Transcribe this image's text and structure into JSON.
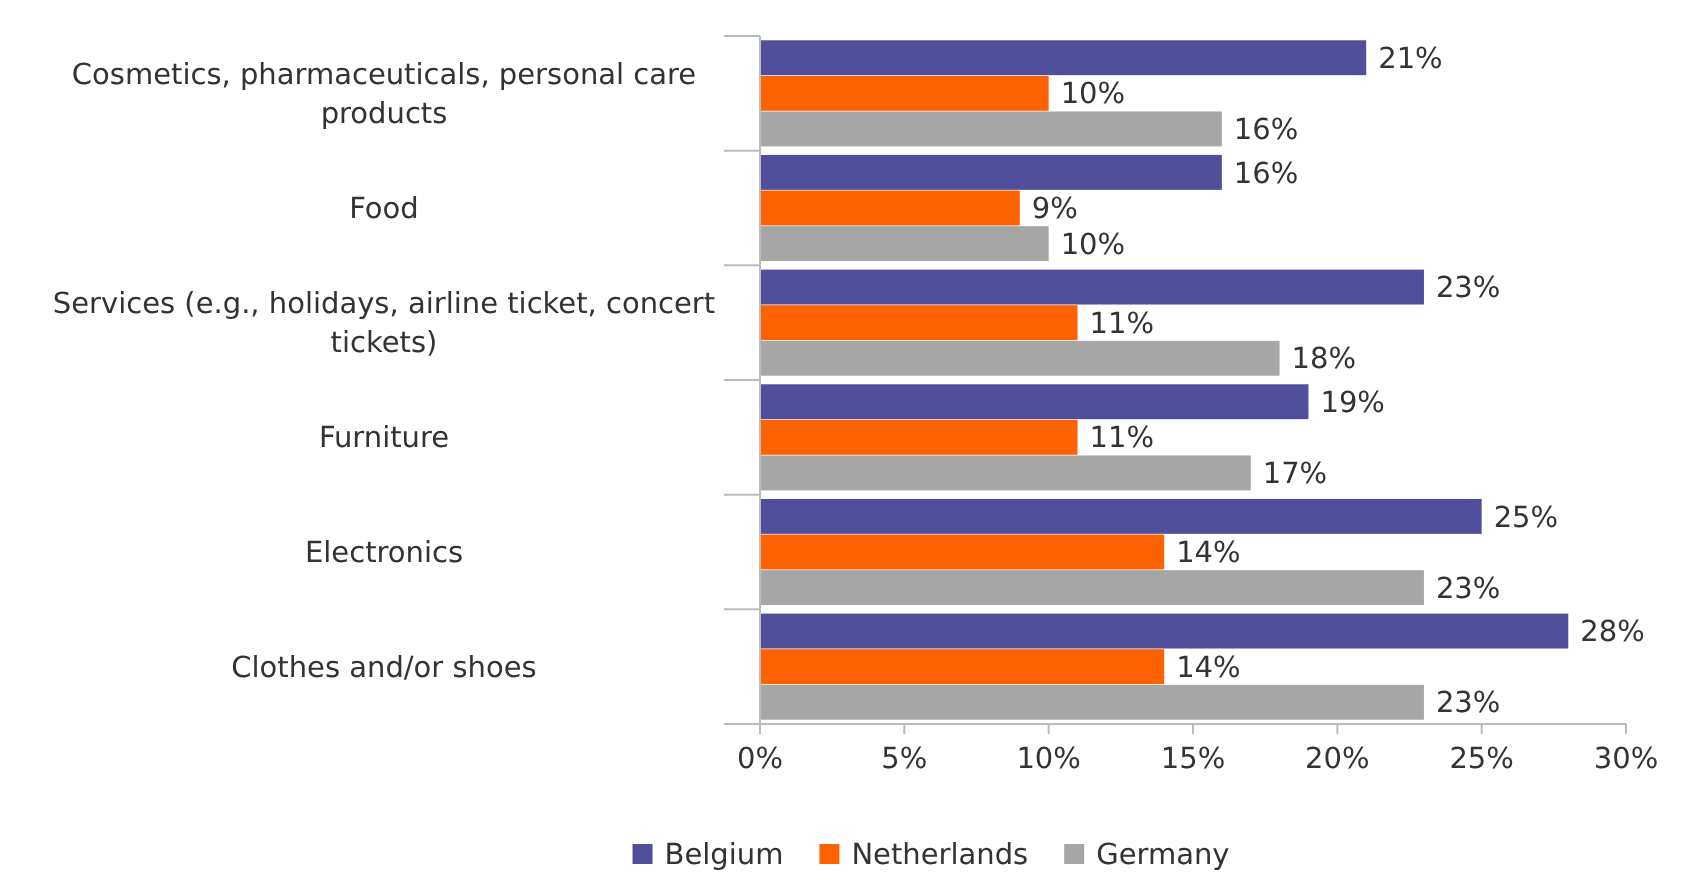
{
  "chart_data": {
    "type": "bar",
    "orientation": "horizontal",
    "categories": [
      "Cosmetics, pharmaceuticals, personal care products",
      "Food",
      "Services (e.g., holidays, airline ticket, concert tickets)",
      "Furniture",
      "Electronics",
      "Clothes and/or shoes"
    ],
    "series": [
      {
        "name": "Belgium",
        "color": "#514e9b",
        "values": [
          21,
          16,
          23,
          19,
          25,
          28
        ],
        "value_labels": [
          "21%",
          "16%",
          "23%",
          "19%",
          "25%",
          "28%"
        ]
      },
      {
        "name": "Netherlands",
        "color": "#ff6200",
        "values": [
          10,
          9,
          11,
          11,
          14,
          14
        ],
        "value_labels": [
          "10%",
          "9%",
          "11%",
          "11%",
          "14%",
          "14%"
        ]
      },
      {
        "name": "Germany",
        "color": "#a6a6a6",
        "values": [
          16,
          10,
          18,
          17,
          23,
          23
        ],
        "value_labels": [
          "16%",
          "10%",
          "18%",
          "17%",
          "23%",
          "23%"
        ]
      }
    ],
    "xlim": [
      0,
      30
    ],
    "xticks": [
      {
        "value": 0,
        "label": "0%"
      },
      {
        "value": 5,
        "label": "5%"
      },
      {
        "value": 10,
        "label": "10%"
      },
      {
        "value": 15,
        "label": "15%"
      },
      {
        "value": 20,
        "label": "20%"
      },
      {
        "value": 25,
        "label": "25%"
      },
      {
        "value": 30,
        "label": "30%"
      }
    ],
    "legend": "bottom"
  }
}
